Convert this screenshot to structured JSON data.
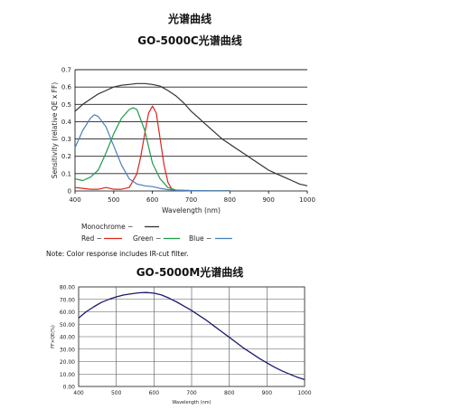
{
  "titles": {
    "main": "光谱曲线",
    "chart1": "GO-5000C光谱曲线",
    "chart2": "GO-5000M光谱曲线"
  },
  "note": "Note: Color response includes IR-cut filter.",
  "chart_data": [
    {
      "type": "line",
      "title": "GO-5000C光谱曲线",
      "xlabel": "Wavelength (nm)",
      "ylabel": "Sensitivity (relative QE x FF)",
      "xlim": [
        400,
        1000
      ],
      "ylim": [
        0,
        0.7
      ],
      "xticks": [
        400,
        500,
        600,
        700,
        800,
        900,
        1000
      ],
      "yticks": [
        "0",
        "0.1",
        "0.2",
        "0.3",
        "0.4",
        "0.5",
        "0.6",
        "0.7"
      ],
      "grid": "horizontal",
      "series": [
        {
          "name": "Monochrome",
          "color": "#333333",
          "x": [
            400,
            420,
            440,
            460,
            480,
            500,
            520,
            540,
            560,
            580,
            600,
            620,
            640,
            660,
            680,
            700,
            720,
            740,
            760,
            780,
            800,
            820,
            840,
            860,
            880,
            900,
            920,
            940,
            960,
            980,
            1000
          ],
          "y": [
            0.46,
            0.5,
            0.53,
            0.56,
            0.58,
            0.6,
            0.61,
            0.615,
            0.62,
            0.62,
            0.615,
            0.605,
            0.58,
            0.55,
            0.51,
            0.46,
            0.42,
            0.38,
            0.34,
            0.3,
            0.27,
            0.24,
            0.21,
            0.18,
            0.15,
            0.12,
            0.1,
            0.08,
            0.06,
            0.04,
            0.03
          ]
        },
        {
          "name": "Red",
          "color": "#d9251c",
          "x": [
            400,
            420,
            440,
            460,
            480,
            500,
            520,
            540,
            560,
            570,
            580,
            590,
            600,
            610,
            620,
            630,
            640,
            650,
            660,
            680,
            700,
            750,
            800
          ],
          "y": [
            0.02,
            0.015,
            0.01,
            0.01,
            0.02,
            0.01,
            0.01,
            0.02,
            0.1,
            0.2,
            0.33,
            0.45,
            0.49,
            0.45,
            0.3,
            0.15,
            0.05,
            0.01,
            0.005,
            0.003,
            0.002,
            0.001,
            0.001
          ]
        },
        {
          "name": "Green",
          "color": "#1e9b4a",
          "x": [
            400,
            420,
            440,
            460,
            480,
            500,
            520,
            540,
            550,
            560,
            580,
            600,
            620,
            640,
            660,
            680,
            700,
            750,
            800
          ],
          "y": [
            0.07,
            0.06,
            0.08,
            0.12,
            0.22,
            0.33,
            0.42,
            0.47,
            0.48,
            0.47,
            0.35,
            0.16,
            0.07,
            0.02,
            0.005,
            0.003,
            0.002,
            0.001,
            0.001
          ]
        },
        {
          "name": "Blue",
          "color": "#4a7ebb",
          "x": [
            400,
            420,
            440,
            450,
            460,
            480,
            500,
            520,
            540,
            560,
            580,
            600,
            620,
            640,
            660,
            680,
            700,
            750,
            800
          ],
          "y": [
            0.25,
            0.35,
            0.42,
            0.44,
            0.43,
            0.37,
            0.26,
            0.15,
            0.07,
            0.04,
            0.03,
            0.025,
            0.015,
            0.008,
            0.004,
            0.003,
            0.002,
            0.001,
            0.001
          ]
        }
      ],
      "legend_labels": {
        "Monochrome": "Monochrome  −",
        "Red": "Red  −",
        "Green": "Green  −",
        "Blue": "Blue  −"
      }
    },
    {
      "type": "line",
      "title": "GO-5000M光谱曲线",
      "xlabel": "Wavelength (nm)",
      "ylabel": "FF×QE(%)",
      "xlim": [
        400,
        1000
      ],
      "ylim": [
        0,
        80
      ],
      "xticks": [
        400,
        500,
        600,
        700,
        800,
        900,
        1000
      ],
      "yticks": [
        "0.00",
        "10.00",
        "20.00",
        "30.00",
        "40.00",
        "50.00",
        "60.00",
        "70.00",
        "80.00"
      ],
      "grid": "both",
      "series": [
        {
          "name": "",
          "color": "#1a1a6e",
          "x": [
            400,
            420,
            440,
            460,
            480,
            500,
            520,
            540,
            560,
            580,
            600,
            620,
            640,
            660,
            680,
            700,
            720,
            740,
            760,
            780,
            800,
            820,
            840,
            860,
            880,
            900,
            920,
            940,
            960,
            980,
            1000
          ],
          "y": [
            55,
            60,
            64,
            67.5,
            70,
            72,
            73.5,
            74.5,
            75.3,
            75.5,
            75,
            73.5,
            71,
            68,
            64.5,
            61,
            57,
            53,
            48.5,
            44,
            39.5,
            35,
            30.5,
            26.5,
            22.5,
            19,
            15.5,
            12.5,
            10,
            7.5,
            5.5
          ]
        }
      ]
    }
  ]
}
